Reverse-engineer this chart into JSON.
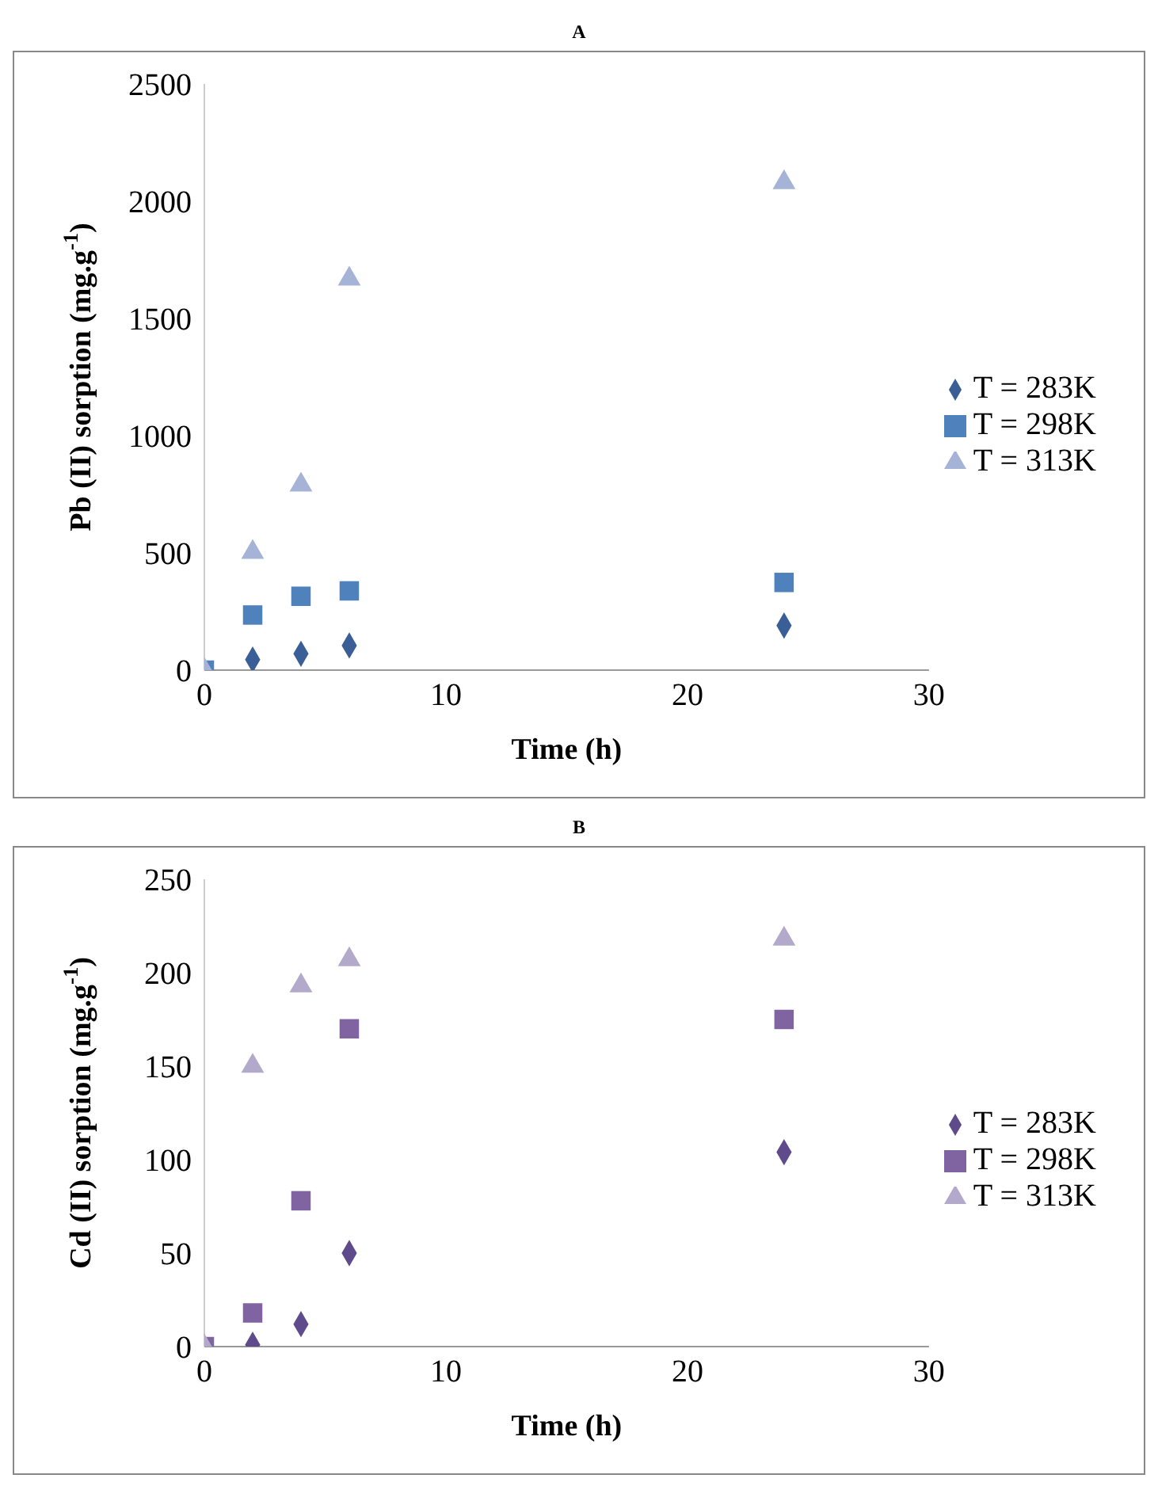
{
  "chart_data": [
    {
      "type": "scatter",
      "title": "A",
      "xlabel": "Time (h)",
      "ylabel": "Pb (II) sorption (mg.g$^{-1}$)",
      "x": [
        0,
        2,
        4,
        6,
        24
      ],
      "xlim": [
        0,
        30
      ],
      "xticks": [
        0,
        10,
        20,
        30
      ],
      "ylim": [
        0,
        2500
      ],
      "yticks": [
        0,
        500,
        1000,
        1500,
        2000,
        2500
      ],
      "grid": false,
      "legend": "right",
      "series": [
        {
          "name": "T = 283K",
          "color": "#3a5f97",
          "marker": "diamond",
          "values": [
            null,
            45,
            70,
            105,
            190
          ]
        },
        {
          "name": "T = 298K",
          "color": "#4f81bd",
          "marker": "square",
          "values": [
            0,
            235,
            315,
            338,
            374
          ]
        },
        {
          "name": "T = 313K",
          "color": "#a5b3d6",
          "marker": "triangle",
          "values": [
            0,
            503,
            790,
            1668,
            2080
          ]
        }
      ]
    },
    {
      "type": "scatter",
      "title": "B",
      "xlabel": "Time (h)",
      "ylabel": "Cd (II) sorption (mg.g$^{-1}$)",
      "x": [
        0,
        2,
        4,
        6,
        24
      ],
      "xlim": [
        0,
        30
      ],
      "xticks": [
        0,
        10,
        20,
        30
      ],
      "ylim": [
        0,
        250
      ],
      "yticks": [
        0,
        50,
        100,
        150,
        200,
        250
      ],
      "grid": false,
      "legend": "right",
      "series": [
        {
          "name": "T = 283K",
          "color": "#5f4b8b",
          "marker": "diamond",
          "values": [
            null,
            1,
            12,
            50,
            104
          ]
        },
        {
          "name": "T = 298K",
          "color": "#8064a2",
          "marker": "square",
          "values": [
            0,
            18,
            78,
            170,
            175
          ]
        },
        {
          "name": "T = 313K",
          "color": "#b3a9cb",
          "marker": "triangle",
          "values": [
            0,
            150,
            193,
            207,
            218
          ]
        }
      ]
    }
  ]
}
